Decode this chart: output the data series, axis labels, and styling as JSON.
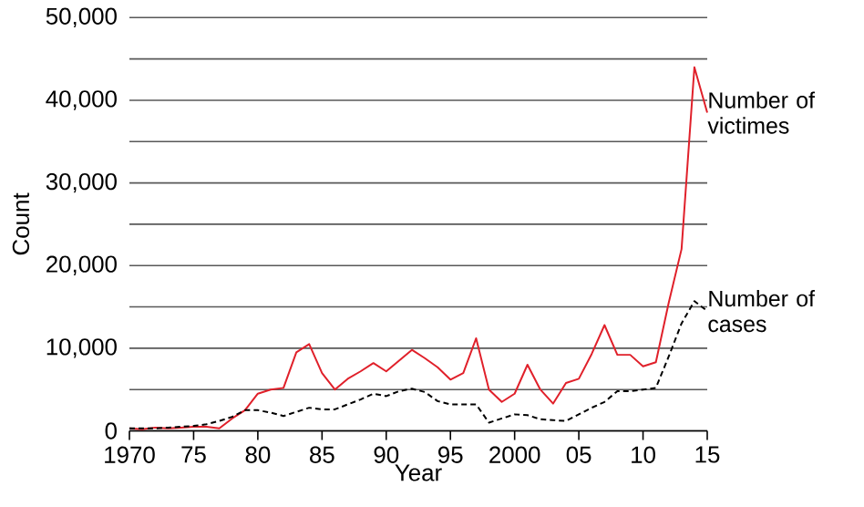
{
  "chart_data": {
    "type": "line",
    "xlabel": "Year",
    "ylabel": "Count",
    "x": [
      1970,
      1971,
      1972,
      1973,
      1974,
      1975,
      1976,
      1977,
      1978,
      1979,
      1980,
      1981,
      1982,
      1983,
      1984,
      1985,
      1986,
      1987,
      1988,
      1989,
      1990,
      1991,
      1992,
      1993,
      1994,
      1995,
      1996,
      1997,
      1998,
      1999,
      2000,
      2001,
      2002,
      2003,
      2004,
      2005,
      2006,
      2007,
      2008,
      2009,
      2010,
      2011,
      2012,
      2013,
      2014,
      2015
    ],
    "series": [
      {
        "name": "Number of victimes",
        "color": "#e0202a",
        "line_style": "solid",
        "values": [
          300,
          200,
          400,
          300,
          400,
          500,
          500,
          300,
          1500,
          2500,
          4500,
          5000,
          5200,
          9500,
          10500,
          7000,
          5000,
          6300,
          7200,
          8200,
          7200,
          8500,
          9800,
          8800,
          7700,
          6200,
          7000,
          11200,
          5000,
          3500,
          4500,
          8000,
          5000,
          3300,
          5800,
          6300,
          9300,
          12800,
          9200,
          9200,
          7800,
          8300,
          15500,
          22000,
          44000,
          38500
        ]
      },
      {
        "name": "Number of cases",
        "color": "#000000",
        "line_style": "dashed",
        "values": [
          300,
          300,
          300,
          400,
          500,
          600,
          800,
          1200,
          1700,
          2500,
          2500,
          2200,
          1800,
          2300,
          2800,
          2600,
          2600,
          3200,
          3800,
          4500,
          4200,
          4800,
          5100,
          4700,
          3600,
          3200,
          3200,
          3200,
          1000,
          1500,
          2000,
          1900,
          1400,
          1300,
          1200,
          2000,
          2800,
          3500,
          4800,
          4800,
          5000,
          5200,
          9000,
          13000,
          15700,
          14500
        ]
      }
    ],
    "xlim": [
      1970,
      2015
    ],
    "xticks": [
      {
        "value": 1970,
        "label": "1970"
      },
      {
        "value": 1975,
        "label": "75"
      },
      {
        "value": 1980,
        "label": "80"
      },
      {
        "value": 1985,
        "label": "85"
      },
      {
        "value": 1990,
        "label": "90"
      },
      {
        "value": 1995,
        "label": "95"
      },
      {
        "value": 2000,
        "label": "2000"
      },
      {
        "value": 2005,
        "label": "05"
      },
      {
        "value": 2010,
        "label": "10"
      },
      {
        "value": 2015,
        "label": "15"
      }
    ],
    "ylim": [
      0,
      50000
    ],
    "yticks": [
      0,
      {
        "value": 5000,
        "label": null
      },
      {
        "value": 10000,
        "label": "10,000"
      },
      {
        "value": 15000,
        "label": null
      },
      {
        "value": 20000,
        "label": "20,000"
      },
      {
        "value": 25000,
        "label": null
      },
      {
        "value": 30000,
        "label": "30,000"
      },
      {
        "value": 35000,
        "label": null
      },
      {
        "value": 40000,
        "label": "40,000"
      },
      {
        "value": 45000,
        "label": null
      },
      {
        "value": 50000,
        "label": "50,000"
      }
    ],
    "grid": "y",
    "legend": false,
    "marker": "none"
  }
}
